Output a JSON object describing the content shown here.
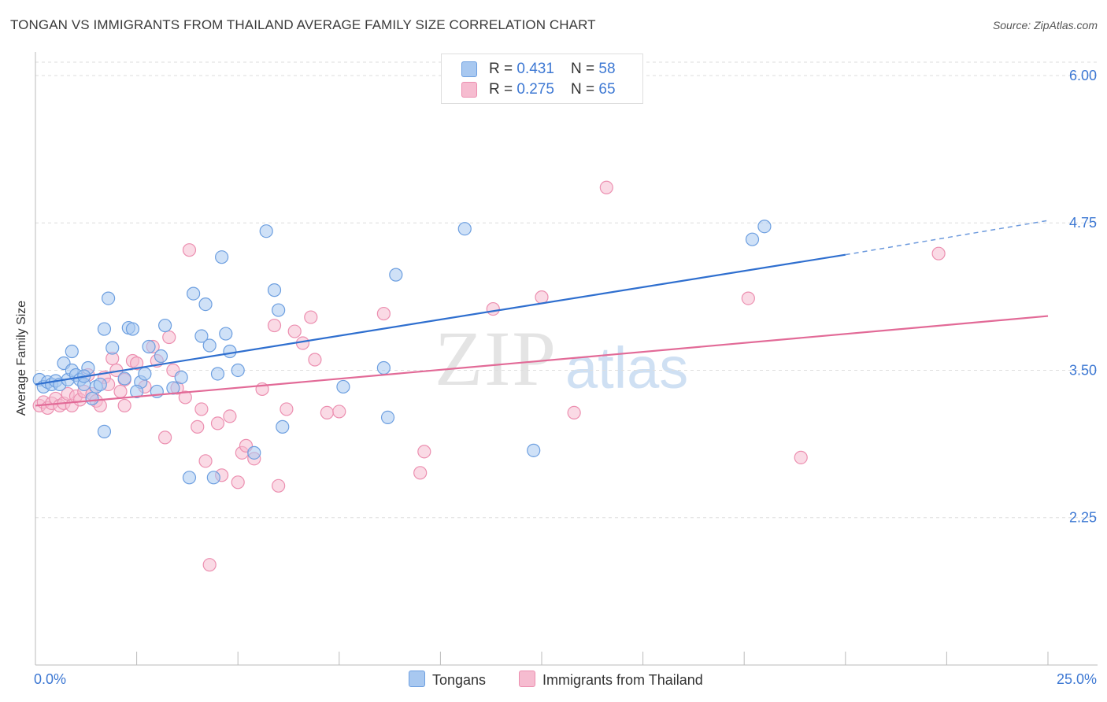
{
  "title": "TONGAN VS IMMIGRANTS FROM THAILAND AVERAGE FAMILY SIZE CORRELATION CHART",
  "source": "Source: ZipAtlas.com",
  "watermark": {
    "zip": "ZIP",
    "atlas": "atlas"
  },
  "legend_top": {
    "rows": [
      {
        "r_label": "R = ",
        "r_value": "0.431",
        "n_label": "N = ",
        "n_value": "58"
      },
      {
        "r_label": "R = ",
        "r_value": "0.275",
        "n_label": "N = ",
        "n_value": "65"
      }
    ]
  },
  "legend_bottom": {
    "series1": "Tongans",
    "series2": "Immigrants from Thailand"
  },
  "colors": {
    "blue_fill": "#a8c8f0",
    "blue_stroke": "#6d9fe0",
    "blue_line": "#2f6fcf",
    "pink_fill": "#f6bcd0",
    "pink_stroke": "#ec8fb0",
    "pink_line": "#e26a97",
    "axis_text": "#3d78d3",
    "grid": "#dedede"
  },
  "chart_data": {
    "type": "scatter",
    "title": "TONGAN VS IMMIGRANTS FROM THAILAND AVERAGE FAMILY SIZE CORRELATION CHART",
    "xlabel": "",
    "ylabel": "Average Family Size",
    "xlim": [
      0,
      25
    ],
    "ylim": [
      1.0,
      6.2
    ],
    "x_tick_labels": [
      "0.0%",
      "25.0%"
    ],
    "y_ticks": [
      2.25,
      3.5,
      4.75,
      6.0
    ],
    "y_tick_labels": [
      "2.25",
      "3.50",
      "4.75",
      "6.00"
    ],
    "grid": "horizontal dashed",
    "legend": "top-center and bottom",
    "series": [
      {
        "name": "Tongans",
        "r": 0.431,
        "n": 58,
        "trend": {
          "x0": 0,
          "y0": 3.38,
          "x1": 20,
          "y1": 4.48,
          "dashed_to_x": 25,
          "dashed_to_y": 4.77
        },
        "points": [
          [
            0.1,
            3.42
          ],
          [
            0.2,
            3.36
          ],
          [
            0.3,
            3.4
          ],
          [
            0.4,
            3.38
          ],
          [
            0.5,
            3.41
          ],
          [
            0.6,
            3.38
          ],
          [
            0.7,
            3.56
          ],
          [
            0.8,
            3.42
          ],
          [
            0.9,
            3.5
          ],
          [
            1.0,
            3.46
          ],
          [
            1.1,
            3.42
          ],
          [
            1.2,
            3.38
          ],
          [
            1.3,
            3.52
          ],
          [
            1.4,
            3.26
          ],
          [
            1.5,
            3.36
          ],
          [
            0.9,
            3.66
          ],
          [
            1.7,
            2.98
          ],
          [
            1.8,
            4.11
          ],
          [
            1.9,
            3.69
          ],
          [
            2.2,
            3.43
          ],
          [
            2.3,
            3.86
          ],
          [
            2.4,
            3.85
          ],
          [
            2.6,
            3.4
          ],
          [
            2.7,
            3.47
          ],
          [
            2.8,
            3.7
          ],
          [
            3.1,
            3.62
          ],
          [
            3.2,
            3.88
          ],
          [
            3.4,
            3.35
          ],
          [
            3.6,
            3.44
          ],
          [
            3.8,
            2.59
          ],
          [
            3.9,
            4.15
          ],
          [
            4.1,
            3.79
          ],
          [
            4.2,
            4.06
          ],
          [
            4.3,
            3.71
          ],
          [
            4.5,
            3.47
          ],
          [
            4.6,
            4.46
          ],
          [
            4.8,
            3.66
          ],
          [
            5.0,
            3.5
          ],
          [
            5.4,
            2.8
          ],
          [
            5.7,
            4.68
          ],
          [
            5.9,
            4.18
          ],
          [
            6.0,
            4.01
          ],
          [
            6.1,
            3.02
          ],
          [
            7.6,
            3.36
          ],
          [
            8.6,
            3.52
          ],
          [
            8.7,
            3.1
          ],
          [
            8.9,
            4.31
          ],
          [
            10.6,
            4.7
          ],
          [
            12.3,
            2.82
          ],
          [
            17.7,
            4.61
          ],
          [
            18.0,
            4.72
          ],
          [
            1.7,
            3.85
          ],
          [
            2.5,
            3.32
          ],
          [
            4.4,
            2.59
          ],
          [
            3.0,
            3.32
          ],
          [
            1.6,
            3.38
          ],
          [
            4.7,
            3.81
          ],
          [
            1.2,
            3.45
          ]
        ]
      },
      {
        "name": "Immigrants from Thailand",
        "r": 0.275,
        "n": 65,
        "trend": {
          "x0": 0,
          "y0": 3.2,
          "x1": 25,
          "y1": 3.96
        },
        "points": [
          [
            0.1,
            3.2
          ],
          [
            0.2,
            3.23
          ],
          [
            0.3,
            3.18
          ],
          [
            0.4,
            3.22
          ],
          [
            0.5,
            3.26
          ],
          [
            0.6,
            3.2
          ],
          [
            0.7,
            3.22
          ],
          [
            0.8,
            3.3
          ],
          [
            0.9,
            3.2
          ],
          [
            1.0,
            3.28
          ],
          [
            1.1,
            3.25
          ],
          [
            1.2,
            3.32
          ],
          [
            1.3,
            3.46
          ],
          [
            1.4,
            3.3
          ],
          [
            1.5,
            3.24
          ],
          [
            1.6,
            3.2
          ],
          [
            1.7,
            3.44
          ],
          [
            1.8,
            3.38
          ],
          [
            1.9,
            3.6
          ],
          [
            2.0,
            3.5
          ],
          [
            2.1,
            3.32
          ],
          [
            2.2,
            3.42
          ],
          [
            2.4,
            3.58
          ],
          [
            2.5,
            3.56
          ],
          [
            2.7,
            3.36
          ],
          [
            2.9,
            3.7
          ],
          [
            3.0,
            3.58
          ],
          [
            3.2,
            2.93
          ],
          [
            3.3,
            3.78
          ],
          [
            3.4,
            3.5
          ],
          [
            3.5,
            3.35
          ],
          [
            3.7,
            3.27
          ],
          [
            3.8,
            4.52
          ],
          [
            4.0,
            3.02
          ],
          [
            4.1,
            3.17
          ],
          [
            4.2,
            2.73
          ],
          [
            4.3,
            1.85
          ],
          [
            4.5,
            3.05
          ],
          [
            4.6,
            2.61
          ],
          [
            4.8,
            3.11
          ],
          [
            5.0,
            2.55
          ],
          [
            5.1,
            2.8
          ],
          [
            5.2,
            2.86
          ],
          [
            5.4,
            2.75
          ],
          [
            5.6,
            3.34
          ],
          [
            5.9,
            3.88
          ],
          [
            6.0,
            2.52
          ],
          [
            6.2,
            3.17
          ],
          [
            6.4,
            3.83
          ],
          [
            6.6,
            3.73
          ],
          [
            6.8,
            3.95
          ],
          [
            6.9,
            3.59
          ],
          [
            7.2,
            3.14
          ],
          [
            7.5,
            3.15
          ],
          [
            8.6,
            3.98
          ],
          [
            9.5,
            2.63
          ],
          [
            9.6,
            2.81
          ],
          [
            11.3,
            4.02
          ],
          [
            12.5,
            4.12
          ],
          [
            13.3,
            3.14
          ],
          [
            14.1,
            5.05
          ],
          [
            17.6,
            4.11
          ],
          [
            18.9,
            2.76
          ],
          [
            22.3,
            4.49
          ],
          [
            2.2,
            3.2
          ]
        ]
      }
    ]
  }
}
